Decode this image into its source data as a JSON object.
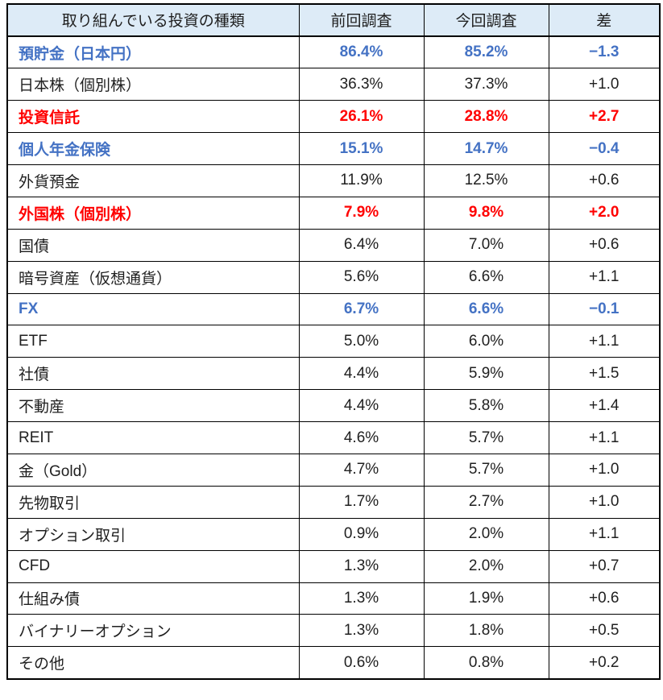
{
  "colors": {
    "blue": "#4472C4",
    "red": "#FF0000",
    "header_bg": "#DDEBF7",
    "border": "#000000",
    "text": "#1f1f1f"
  },
  "table": {
    "headers": [
      "取り組んでいる投資の種類",
      "前回調査",
      "今回調査",
      "差"
    ],
    "rows": [
      {
        "label": "預貯金（日本円）",
        "prev": "86.4%",
        "curr": "85.2%",
        "diff": "−1.3",
        "style": "blue"
      },
      {
        "label": "日本株（個別株）",
        "prev": "36.3%",
        "curr": "37.3%",
        "diff": "+1.0",
        "style": "normal"
      },
      {
        "label": "投資信託",
        "prev": "26.1%",
        "curr": "28.8%",
        "diff": "+2.7",
        "style": "red"
      },
      {
        "label": "個人年金保険",
        "prev": "15.1%",
        "curr": "14.7%",
        "diff": "−0.4",
        "style": "blue"
      },
      {
        "label": "外貨預金",
        "prev": "11.9%",
        "curr": "12.5%",
        "diff": "+0.6",
        "style": "normal"
      },
      {
        "label": "外国株（個別株）",
        "prev": "7.9%",
        "curr": "9.8%",
        "diff": "+2.0",
        "style": "red"
      },
      {
        "label": "国債",
        "prev": "6.4%",
        "curr": "7.0%",
        "diff": "+0.6",
        "style": "normal"
      },
      {
        "label": "暗号資産（仮想通貨）",
        "prev": "5.6%",
        "curr": "6.6%",
        "diff": "+1.1",
        "style": "normal"
      },
      {
        "label": "FX",
        "prev": "6.7%",
        "curr": "6.6%",
        "diff": "−0.1",
        "style": "blue"
      },
      {
        "label": "ETF",
        "prev": "5.0%",
        "curr": "6.0%",
        "diff": "+1.1",
        "style": "normal"
      },
      {
        "label": "社債",
        "prev": "4.4%",
        "curr": "5.9%",
        "diff": "+1.5",
        "style": "normal"
      },
      {
        "label": "不動産",
        "prev": "4.4%",
        "curr": "5.8%",
        "diff": "+1.4",
        "style": "normal"
      },
      {
        "label": "REIT",
        "prev": "4.6%",
        "curr": "5.7%",
        "diff": "+1.1",
        "style": "normal"
      },
      {
        "label": "金（Gold）",
        "prev": "4.7%",
        "curr": "5.7%",
        "diff": "+1.0",
        "style": "normal"
      },
      {
        "label": "先物取引",
        "prev": "1.7%",
        "curr": "2.7%",
        "diff": "+1.0",
        "style": "normal"
      },
      {
        "label": "オプション取引",
        "prev": "0.9%",
        "curr": "2.0%",
        "diff": "+1.1",
        "style": "normal"
      },
      {
        "label": "CFD",
        "prev": "1.3%",
        "curr": "2.0%",
        "diff": "+0.7",
        "style": "normal"
      },
      {
        "label": "仕組み債",
        "prev": "1.3%",
        "curr": "1.9%",
        "diff": "+0.6",
        "style": "normal"
      },
      {
        "label": "バイナリーオプション",
        "prev": "1.3%",
        "curr": "1.8%",
        "diff": "+0.5",
        "style": "normal"
      },
      {
        "label": "その他",
        "prev": "0.6%",
        "curr": "0.8%",
        "diff": "+0.2",
        "style": "normal"
      }
    ]
  },
  "chart_data": {
    "type": "table",
    "title": "取り組んでいる投資の種類",
    "columns": [
      "取り組んでいる投資の種類",
      "前回調査",
      "今回調査",
      "差"
    ],
    "units": "percent",
    "rows": [
      [
        "預貯金（日本円）",
        86.4,
        85.2,
        -1.3
      ],
      [
        "日本株（個別株）",
        36.3,
        37.3,
        1.0
      ],
      [
        "投資信託",
        26.1,
        28.8,
        2.7
      ],
      [
        "個人年金保険",
        15.1,
        14.7,
        -0.4
      ],
      [
        "外貨預金",
        11.9,
        12.5,
        0.6
      ],
      [
        "外国株（個別株）",
        7.9,
        9.8,
        2.0
      ],
      [
        "国債",
        6.4,
        7.0,
        0.6
      ],
      [
        "暗号資産（仮想通貨）",
        5.6,
        6.6,
        1.1
      ],
      [
        "FX",
        6.7,
        6.6,
        -0.1
      ],
      [
        "ETF",
        5.0,
        6.0,
        1.1
      ],
      [
        "社債",
        4.4,
        5.9,
        1.5
      ],
      [
        "不動産",
        4.4,
        5.8,
        1.4
      ],
      [
        "REIT",
        4.6,
        5.7,
        1.1
      ],
      [
        "金（Gold）",
        4.7,
        5.7,
        1.0
      ],
      [
        "先物取引",
        1.7,
        2.7,
        1.0
      ],
      [
        "オプション取引",
        0.9,
        2.0,
        1.1
      ],
      [
        "CFD",
        1.3,
        2.0,
        0.7
      ],
      [
        "仕組み債",
        1.3,
        1.9,
        0.6
      ],
      [
        "バイナリーオプション",
        1.3,
        1.8,
        0.5
      ],
      [
        "その他",
        0.6,
        0.8,
        0.2
      ]
    ],
    "highlight_rows": {
      "blue_decrease": [
        "預貯金（日本円）",
        "個人年金保険",
        "FX"
      ],
      "red_increase": [
        "投資信託",
        "外国株（個別株）"
      ]
    }
  }
}
